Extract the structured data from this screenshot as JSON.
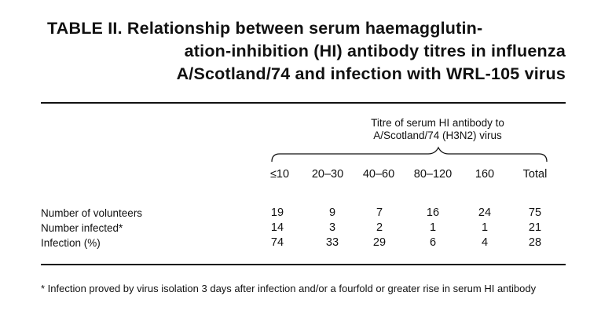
{
  "title": {
    "line1": "TABLE II. Relationship between serum haemagglutin-",
    "line2": "ation-inhibition (HI) antibody titres in influenza",
    "line3": "A/Scotland/74 and infection with WRL-105 virus"
  },
  "spanner": {
    "line1": "Titre of serum HI antibody to",
    "line2": "A/Scotland/74 (H3N2) virus"
  },
  "columns": [
    "≤10",
    "20–30",
    "40–60",
    "80–120",
    "160",
    "Total"
  ],
  "rows": [
    {
      "label": "Number of volunteers",
      "values": [
        "19",
        "9",
        "7",
        "16",
        "24",
        "75"
      ]
    },
    {
      "label": "Number infected*",
      "values": [
        "14",
        "3",
        "2",
        "1",
        "1",
        "21"
      ]
    },
    {
      "label": "Infection (%)",
      "values": [
        "74",
        "33",
        "29",
        "6",
        "4",
        "28"
      ]
    }
  ],
  "footnote": "* Infection proved by virus isolation 3 days after infection and/or a fourfold or greater rise in serum HI antibody"
}
